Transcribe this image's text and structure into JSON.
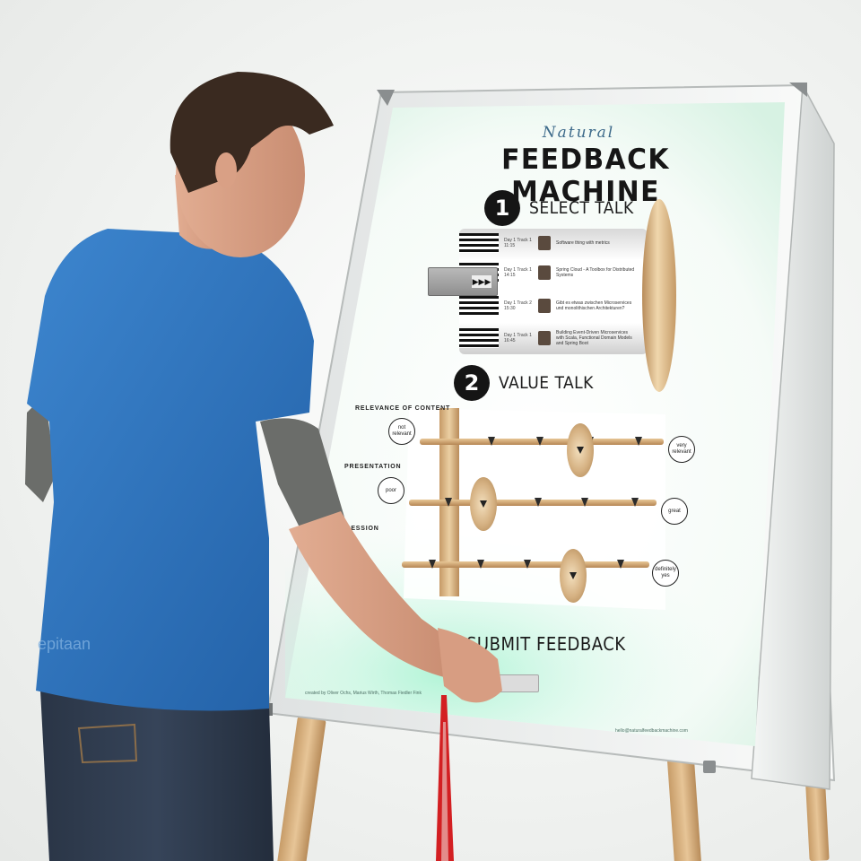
{
  "machine": {
    "brand_subtitle": "Natural",
    "brand_title": "FEEDBACK MACHINE",
    "step1": {
      "number": "1",
      "label": "SELECT TALK"
    },
    "step2": {
      "number": "2",
      "label": "VALUE TALK"
    },
    "selector_label": "▶▶▶",
    "criteria": [
      {
        "label": "RELEVANCE OF CONTENT",
        "low": "not relevant",
        "high": "very relevant"
      },
      {
        "label": "PRESENTATION",
        "low": "poor",
        "high": "great"
      },
      {
        "label": "PRESSION",
        "low": "",
        "high": "definitely yes"
      }
    ],
    "submit_label": "SUBMIT FEEDBACK",
    "credits": "created by Oliver Ochs, Marius Wirth, Thomas Fiedler Fink",
    "email": "hello@naturalfeedbackmachine.com"
  },
  "talks": [
    {
      "meta": "Day 1 Track 1 11:15",
      "title": "Software thing with metrics"
    },
    {
      "meta": "Day 1 Track 1 14:15",
      "title": "Spring Cloud - A Toolbox for Distributed Systems"
    },
    {
      "meta": "Day 1 Track 2 15:30",
      "title": "Gibt es etwas zwischen Microservices und monolithischen Architekturen?"
    },
    {
      "meta": "Day 1 Track 1 16:45",
      "title": "Building Event-Driven Microservices with Scala, Functional Domain Models and Spring Boot"
    }
  ],
  "shirt_logo": "epitaan",
  "colors": {
    "shirt": "#2a6fb8",
    "sleeve": "#6b6d6a",
    "jeans": "#2d3a4c",
    "lanyard": "#d31f22",
    "glow": "#8ff0c8"
  }
}
